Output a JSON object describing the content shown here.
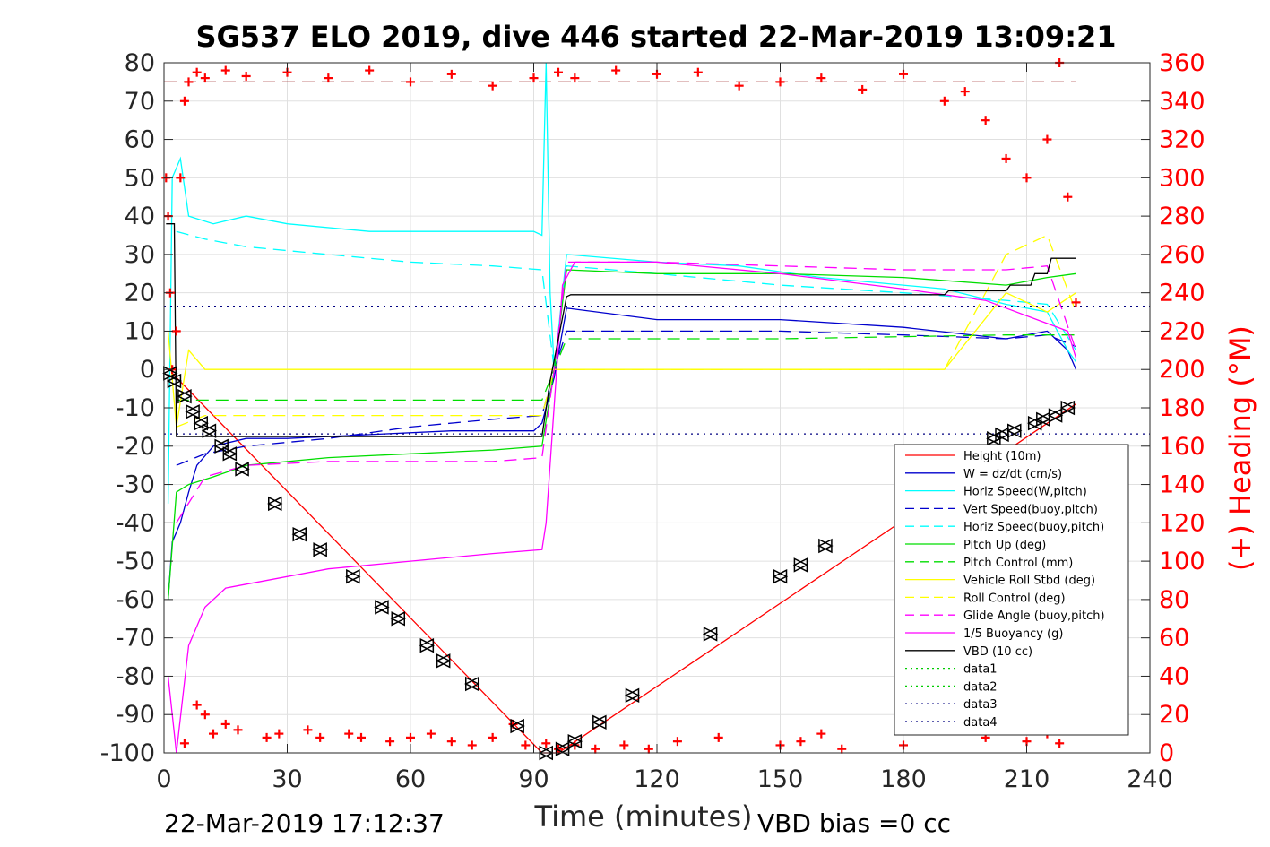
{
  "chart_data": {
    "type": "line",
    "title": "SG537 ELO 2019, dive 446 started 22-Mar-2019 13:09:21",
    "xlabel": "Time (minutes)",
    "ylabel_right": "(+) Heading (°M)",
    "xlim": [
      0,
      240
    ],
    "ylim": [
      -100,
      80
    ],
    "ylim_right": [
      0,
      360
    ],
    "x_ticks": [
      "0",
      "30",
      "60",
      "90",
      "120",
      "150",
      "180",
      "210",
      "240"
    ],
    "y_ticks": [
      "80",
      "70",
      "60",
      "50",
      "40",
      "30",
      "20",
      "10",
      "0",
      "-10",
      "-20",
      "-30",
      "-40",
      "-50",
      "-60",
      "-70",
      "-80",
      "-90",
      "-100"
    ],
    "y_right_ticks": [
      "360",
      "340",
      "320",
      "300",
      "280",
      "260",
      "240",
      "220",
      "200",
      "180",
      "160",
      "140",
      "120",
      "100",
      "80",
      "60",
      "40",
      "20",
      "0"
    ],
    "grid": true,
    "legend_position": "bottom-right",
    "series": [
      {
        "name": "Height (10m)",
        "color": "#ff0000",
        "style": "solid",
        "x": [
          2,
          92,
          96,
          222
        ],
        "y": [
          -1,
          -100,
          -100,
          -9
        ]
      },
      {
        "name": "W = dz/dt (cm/s)",
        "color": "#0000cd",
        "style": "solid",
        "x": [
          1,
          2,
          4,
          6,
          8,
          12,
          20,
          30,
          50,
          70,
          90,
          92,
          95,
          98,
          120,
          150,
          180,
          205,
          215,
          220,
          222
        ],
        "y": [
          -60,
          -45,
          -40,
          -32,
          -25,
          -20,
          -18,
          -18,
          -17,
          -16,
          -16,
          -14,
          -2,
          16,
          13,
          13,
          11,
          8,
          10,
          5,
          0
        ]
      },
      {
        "name": "Horiz Speed(W,pitch)",
        "color": "#00ffff",
        "style": "solid",
        "x": [
          1,
          2,
          4,
          6,
          12,
          20,
          30,
          50,
          70,
          90,
          92,
          93,
          94,
          95,
          98,
          120,
          140,
          160,
          190,
          205,
          215,
          220,
          222
        ],
        "y": [
          -35,
          50,
          55,
          40,
          38,
          40,
          38,
          36,
          36,
          36,
          35,
          80,
          20,
          0,
          30,
          28,
          27,
          24,
          21,
          17,
          15,
          5,
          2
        ]
      },
      {
        "name": "Vert Speed(buoy,pitch)",
        "color": "#0000cd",
        "style": "dash",
        "x": [
          3,
          10,
          20,
          40,
          60,
          80,
          92,
          95,
          98,
          120,
          150,
          180,
          205,
          215,
          222
        ],
        "y": [
          -25,
          -22,
          -20,
          -18,
          -15,
          -13,
          -12,
          0,
          10,
          10,
          10,
          9,
          8,
          9,
          6
        ]
      },
      {
        "name": "Horiz Speed(buoy,pitch)",
        "color": "#00ffff",
        "style": "dash",
        "x": [
          3,
          10,
          20,
          40,
          60,
          80,
          92,
          95,
          98,
          120,
          150,
          180,
          205,
          215,
          222
        ],
        "y": [
          36,
          34,
          32,
          30,
          28,
          27,
          26,
          0,
          27,
          25,
          22,
          20,
          18,
          17,
          5
        ]
      },
      {
        "name": "Pitch Up (deg)",
        "color": "#00dd00",
        "style": "solid",
        "x": [
          1,
          3,
          6,
          12,
          20,
          40,
          60,
          80,
          92,
          95,
          98,
          120,
          150,
          180,
          205,
          215,
          222
        ],
        "y": [
          -60,
          -32,
          -30,
          -28,
          -25,
          -23,
          -22,
          -21,
          -20,
          0,
          26,
          25,
          25,
          24,
          22,
          24,
          25
        ]
      },
      {
        "name": "Pitch Control (mm)",
        "color": "#00dd00",
        "style": "dash",
        "x": [
          3,
          10,
          30,
          60,
          92,
          95,
          98,
          150,
          205,
          222
        ],
        "y": [
          -8,
          -8,
          -8,
          -8,
          -8,
          0,
          8,
          8,
          9,
          9
        ]
      },
      {
        "name": "Vehicle Roll Stbd (deg)",
        "color": "#ffff00",
        "style": "solid",
        "x": [
          1,
          3,
          6,
          10,
          30,
          60,
          92,
          95,
          98,
          120,
          150,
          180,
          190,
          205,
          215,
          222
        ],
        "y": [
          10,
          -15,
          5,
          0,
          0,
          0,
          0,
          0,
          0,
          0,
          0,
          0,
          0,
          20,
          15,
          20
        ]
      },
      {
        "name": "Roll Control (deg)",
        "color": "#ffff00",
        "style": "dash",
        "x": [
          3,
          10,
          30,
          60,
          92,
          95,
          98,
          150,
          190,
          205,
          215,
          222
        ],
        "y": [
          -15,
          -12,
          -12,
          -12,
          -12,
          0,
          0,
          0,
          0,
          30,
          35,
          15
        ]
      },
      {
        "name": "Glide Angle (buoy,pitch)",
        "color": "#ff00ff",
        "style": "dash",
        "x": [
          3,
          10,
          20,
          40,
          60,
          80,
          92,
          95,
          98,
          120,
          150,
          180,
          205,
          215,
          222
        ],
        "y": [
          -40,
          -28,
          -25,
          -24,
          -24,
          -24,
          -23,
          0,
          28,
          28,
          27,
          26,
          26,
          27,
          5
        ]
      },
      {
        "name": "1/5 Buoyancy (g)",
        "color": "#ff00ff",
        "style": "solid",
        "x": [
          1,
          3,
          6,
          10,
          15,
          20,
          40,
          60,
          80,
          92,
          93,
          97,
          100,
          120,
          150,
          180,
          200,
          215,
          220,
          222
        ],
        "y": [
          -80,
          -100,
          -72,
          -62,
          -57,
          -56,
          -52,
          -50,
          -48,
          -47,
          -40,
          22,
          28,
          28,
          25,
          21,
          18,
          12,
          10,
          3
        ]
      },
      {
        "name": "VBD (10 cc)",
        "color": "#000000",
        "style": "solid",
        "x": [
          0.5,
          2.5,
          3,
          92,
          94,
          98,
          99,
          190,
          191,
          205,
          206,
          211,
          212,
          215,
          216,
          222
        ],
        "y": [
          38,
          38,
          -17.5,
          -17.5,
          -3,
          19,
          19.5,
          19.5,
          20.5,
          20.5,
          22,
          22,
          25,
          25,
          29,
          29
        ]
      },
      {
        "name": "data1",
        "color": "#00cc00",
        "style": "dot",
        "x": [],
        "y": []
      },
      {
        "name": "data2",
        "color": "#00cc00",
        "style": "dot",
        "x": [],
        "y": []
      },
      {
        "name": "data3",
        "color": "#000080",
        "style": "dot",
        "x": [
          0,
          240
        ],
        "y": [
          16.5,
          16.5
        ]
      },
      {
        "name": "data4",
        "color": "#000080",
        "style": "dot",
        "x": [
          0,
          240
        ],
        "y": [
          -16.8,
          -16.8
        ]
      }
    ],
    "reference_lines": [
      {
        "axis": "right",
        "color": "#8b0000",
        "style": "dash",
        "value": 350
      }
    ],
    "heading_right_axis": {
      "color": "#ff0000",
      "marker": "+",
      "x": [
        0.5,
        1,
        1.5,
        2,
        3,
        4,
        5,
        6,
        8,
        10,
        15,
        20,
        30,
        40,
        50,
        60,
        70,
        80,
        90,
        93,
        96,
        100,
        110,
        120,
        130,
        140,
        150,
        160,
        170,
        180,
        190,
        195,
        200,
        205,
        210,
        215,
        218,
        220,
        222
      ],
      "y": [
        300,
        280,
        240,
        200,
        220,
        300,
        340,
        350,
        355,
        352,
        356,
        353,
        355,
        352,
        356,
        350,
        354,
        348,
        352,
        5,
        355,
        352,
        356,
        354,
        355,
        348,
        350,
        352,
        346,
        354,
        340,
        345,
        330,
        310,
        300,
        320,
        360,
        290,
        235
      ]
    },
    "heading_low_clusters": {
      "x": [
        5,
        8,
        10,
        12,
        15,
        18,
        25,
        28,
        35,
        38,
        45,
        48,
        55,
        60,
        65,
        70,
        75,
        80,
        85,
        88,
        96,
        100,
        105,
        112,
        118,
        125,
        135,
        150,
        155,
        160,
        165,
        180,
        200,
        210,
        215,
        218
      ],
      "y": [
        5,
        25,
        20,
        10,
        15,
        12,
        8,
        10,
        12,
        8,
        10,
        8,
        6,
        8,
        10,
        6,
        4,
        8,
        15,
        4,
        2,
        4,
        2,
        4,
        2,
        6,
        8,
        4,
        6,
        10,
        2,
        4,
        8,
        6,
        10,
        5
      ]
    },
    "waypoints": {
      "x": [
        1.5,
        2.5,
        5,
        7,
        9,
        11,
        14,
        16,
        19,
        27,
        33,
        38,
        46,
        53,
        57,
        64,
        68,
        75,
        86,
        93,
        97,
        100,
        106,
        114,
        133,
        150,
        155,
        161,
        202,
        204,
        207,
        212,
        214,
        217,
        220
      ],
      "y": [
        -1,
        -3,
        -7,
        -11,
        -14,
        -16,
        -20,
        -22,
        -26,
        -35,
        -43,
        -47,
        -54,
        -62,
        -65,
        -72,
        -76,
        -82,
        -93,
        -100,
        -99,
        -97,
        -92,
        -85,
        -69,
        -54,
        -51,
        -46,
        -18,
        -17,
        -16,
        -14,
        -13,
        -12,
        -10
      ]
    }
  },
  "footer": {
    "timestamp": "22-Mar-2019 17:12:37",
    "vbd_bias": "VBD bias =0 cc"
  }
}
